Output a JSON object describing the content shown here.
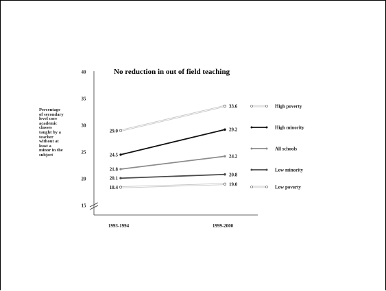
{
  "chart_data": {
    "type": "line",
    "title": "No reduction in out of field teaching",
    "ylabel_lines": [
      "Percentage",
      "of secondary",
      "level core",
      "academic",
      "classes",
      "taught by a",
      "teacher",
      "without at",
      "least a",
      "minor in the",
      "subject"
    ],
    "x": [
      "1993-1994",
      "1999-2000"
    ],
    "yticks": [
      15,
      20,
      25,
      30,
      35,
      40
    ],
    "ylim": [
      15,
      40
    ],
    "axis_break": true,
    "series": [
      {
        "name": "High poverty",
        "values": [
          29.0,
          33.6
        ],
        "labels": [
          "29.0",
          "33.6"
        ],
        "color": "#c8c8c8",
        "style": "double",
        "marker": "open"
      },
      {
        "name": "High minority",
        "values": [
          24.5,
          29.2
        ],
        "labels": [
          "24.5",
          "29.2"
        ],
        "color": "#111111",
        "style": "solid",
        "marker": "filled"
      },
      {
        "name": "All schools",
        "values": [
          21.8,
          24.2
        ],
        "labels": [
          "21.8",
          "24.2"
        ],
        "color": "#8c8c8c",
        "style": "solid",
        "marker": "filled"
      },
      {
        "name": "Low minority",
        "values": [
          20.1,
          20.8
        ],
        "labels": [
          "20.1",
          "20.8"
        ],
        "color": "#4a4a4a",
        "style": "solid",
        "marker": "filled"
      },
      {
        "name": "Low poverty",
        "values": [
          18.4,
          19.0
        ],
        "labels": [
          "18.4",
          "19.0"
        ],
        "color": "#c8c8c8",
        "style": "double",
        "marker": "open"
      }
    ]
  }
}
